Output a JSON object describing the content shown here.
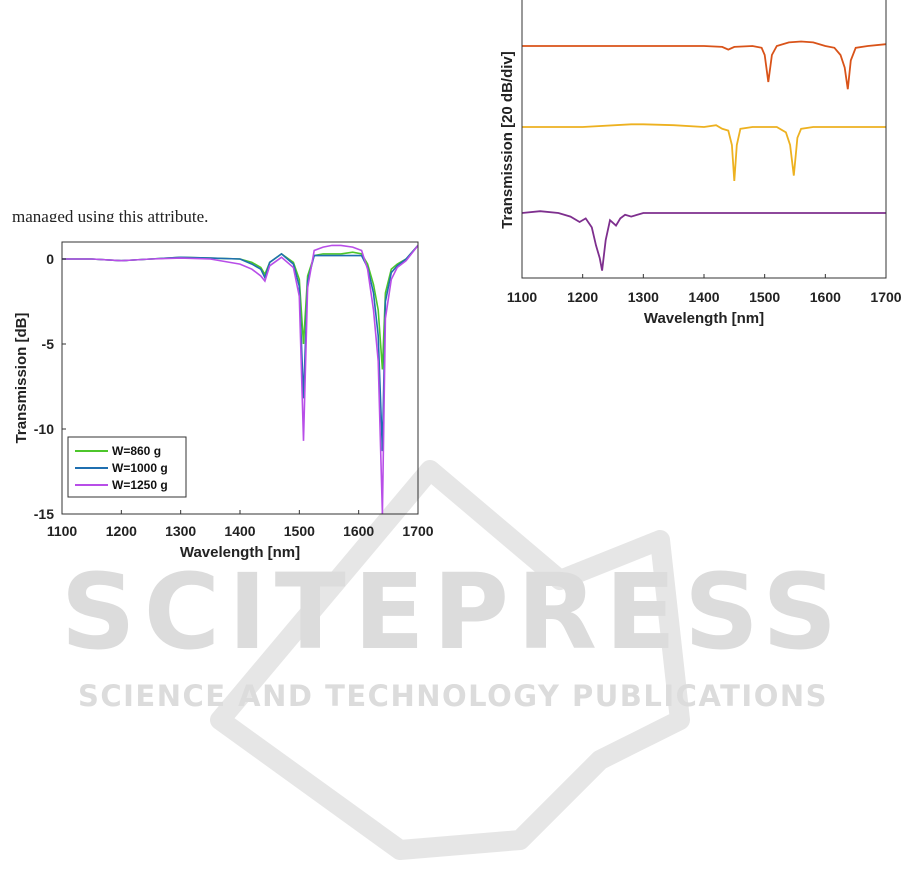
{
  "page": {
    "text_fragment": "managed using this attribute."
  },
  "watermark": {
    "brand": "SCITEPRESS",
    "tagline": "SCIENCE AND TECHNOLOGY PUBLICATIONS",
    "color": "#d9d9d9"
  },
  "chart_data": [
    {
      "type": "line",
      "title": "",
      "xlabel": "Wavelength [nm]",
      "ylabel": "Transmission [dB]",
      "xlim": [
        1100,
        1700
      ],
      "ylim": [
        -15,
        1
      ],
      "xticks": [
        "1100",
        "1200",
        "1300",
        "1400",
        "1500",
        "1600",
        "1700"
      ],
      "yticks": [
        "0",
        "-5",
        "-10",
        "-15"
      ],
      "grid": false,
      "legend_position": "bottom-left",
      "series": [
        {
          "name": "W=860 g",
          "color": "#4dc62b",
          "x": [
            1100,
            1150,
            1200,
            1250,
            1300,
            1350,
            1400,
            1420,
            1435,
            1442,
            1450,
            1470,
            1490,
            1500,
            1507,
            1514,
            1525,
            1540,
            1555,
            1570,
            1590,
            1605,
            1615,
            1625,
            1633,
            1640,
            1645,
            1655,
            1665,
            1680,
            1700
          ],
          "y": [
            0,
            0,
            -0.1,
            0,
            0.1,
            0.05,
            0,
            -0.2,
            -0.5,
            -0.9,
            -0.2,
            0.3,
            -0.2,
            -1.2,
            -5.0,
            -1.0,
            0.2,
            0.3,
            0.3,
            0.3,
            0.4,
            0.3,
            -0.3,
            -1.5,
            -3.0,
            -6.5,
            -2.0,
            -0.6,
            -0.3,
            0,
            0.8
          ]
        },
        {
          "name": "W=1000 g",
          "color": "#1f6fb0",
          "x": [
            1100,
            1150,
            1200,
            1250,
            1300,
            1350,
            1400,
            1420,
            1435,
            1442,
            1450,
            1470,
            1490,
            1500,
            1507,
            1514,
            1525,
            1540,
            1555,
            1570,
            1590,
            1605,
            1615,
            1625,
            1633,
            1640,
            1645,
            1655,
            1665,
            1680,
            1700
          ],
          "y": [
            0,
            0,
            -0.1,
            0,
            0.1,
            0.05,
            0,
            -0.3,
            -0.6,
            -1.1,
            -0.2,
            0.3,
            -0.3,
            -1.6,
            -8.2,
            -1.3,
            0.2,
            0.2,
            0.2,
            0.2,
            0.2,
            0.2,
            -0.5,
            -2.0,
            -4.5,
            -11.3,
            -2.5,
            -0.8,
            -0.4,
            0,
            0.8
          ]
        },
        {
          "name": "W=1250 g",
          "color": "#b84ee8",
          "x": [
            1100,
            1150,
            1200,
            1250,
            1300,
            1350,
            1400,
            1420,
            1435,
            1442,
            1450,
            1470,
            1490,
            1500,
            1507,
            1514,
            1525,
            1540,
            1555,
            1570,
            1590,
            1605,
            1615,
            1625,
            1633,
            1640,
            1645,
            1655,
            1665,
            1680,
            1700
          ],
          "y": [
            0,
            0,
            -0.1,
            0,
            0.05,
            0,
            -0.3,
            -0.6,
            -1.0,
            -1.3,
            -0.4,
            0.1,
            -0.5,
            -2.2,
            -10.7,
            -1.7,
            0.5,
            0.7,
            0.8,
            0.8,
            0.7,
            0.5,
            -0.6,
            -3.0,
            -6.0,
            -15.0,
            -3.5,
            -1.2,
            -0.5,
            -0.1,
            0.8
          ]
        }
      ]
    },
    {
      "type": "line",
      "title": "",
      "xlabel": "Wavelength [nm]",
      "ylabel": "Transmission [20 dB/div]",
      "xlim": [
        1100,
        1700
      ],
      "xticks": [
        "1100",
        "1200",
        "1300",
        "1400",
        "1500",
        "1600",
        "1700"
      ],
      "grid": false,
      "legend_position": "",
      "series": [
        {
          "color": "#d95319",
          "x": [
            1100,
            1200,
            1300,
            1400,
            1430,
            1440,
            1450,
            1480,
            1495,
            1500,
            1506,
            1512,
            1520,
            1540,
            1560,
            1580,
            1600,
            1615,
            1625,
            1632,
            1637,
            1642,
            1650,
            1670,
            1700
          ],
          "y": [
            0,
            0,
            0,
            0,
            -0.5,
            -2,
            -0.5,
            0,
            -1,
            -5,
            -20,
            -5,
            0,
            2,
            2.5,
            2,
            0,
            -1,
            -5,
            -12,
            -24,
            -8,
            -1,
            0,
            1
          ]
        },
        {
          "color": "#edb120",
          "x": [
            1100,
            1200,
            1280,
            1300,
            1350,
            1400,
            1420,
            1430,
            1440,
            1446,
            1450,
            1454,
            1460,
            1480,
            1500,
            1520,
            1535,
            1542,
            1548,
            1554,
            1560,
            1580,
            1620,
            1700
          ],
          "y": [
            0,
            0,
            1.5,
            1.5,
            1,
            0,
            1,
            -1,
            -2,
            -10,
            -30,
            -10,
            -1,
            0,
            0,
            0,
            -3,
            -10,
            -27,
            -6,
            -1,
            0,
            0,
            0
          ]
        },
        {
          "color": "#7e2f8e",
          "x": [
            1100,
            1130,
            1160,
            1180,
            1195,
            1205,
            1215,
            1222,
            1228,
            1232,
            1238,
            1245,
            1255,
            1262,
            1270,
            1280,
            1300,
            1350,
            1400,
            1500,
            1600,
            1700
          ],
          "y": [
            0,
            1,
            0,
            -2,
            -5,
            -3,
            -8,
            -18,
            -25,
            -32,
            -15,
            -4,
            -7,
            -3,
            -1,
            -2,
            0,
            0,
            0,
            0,
            0,
            0
          ]
        }
      ]
    }
  ]
}
